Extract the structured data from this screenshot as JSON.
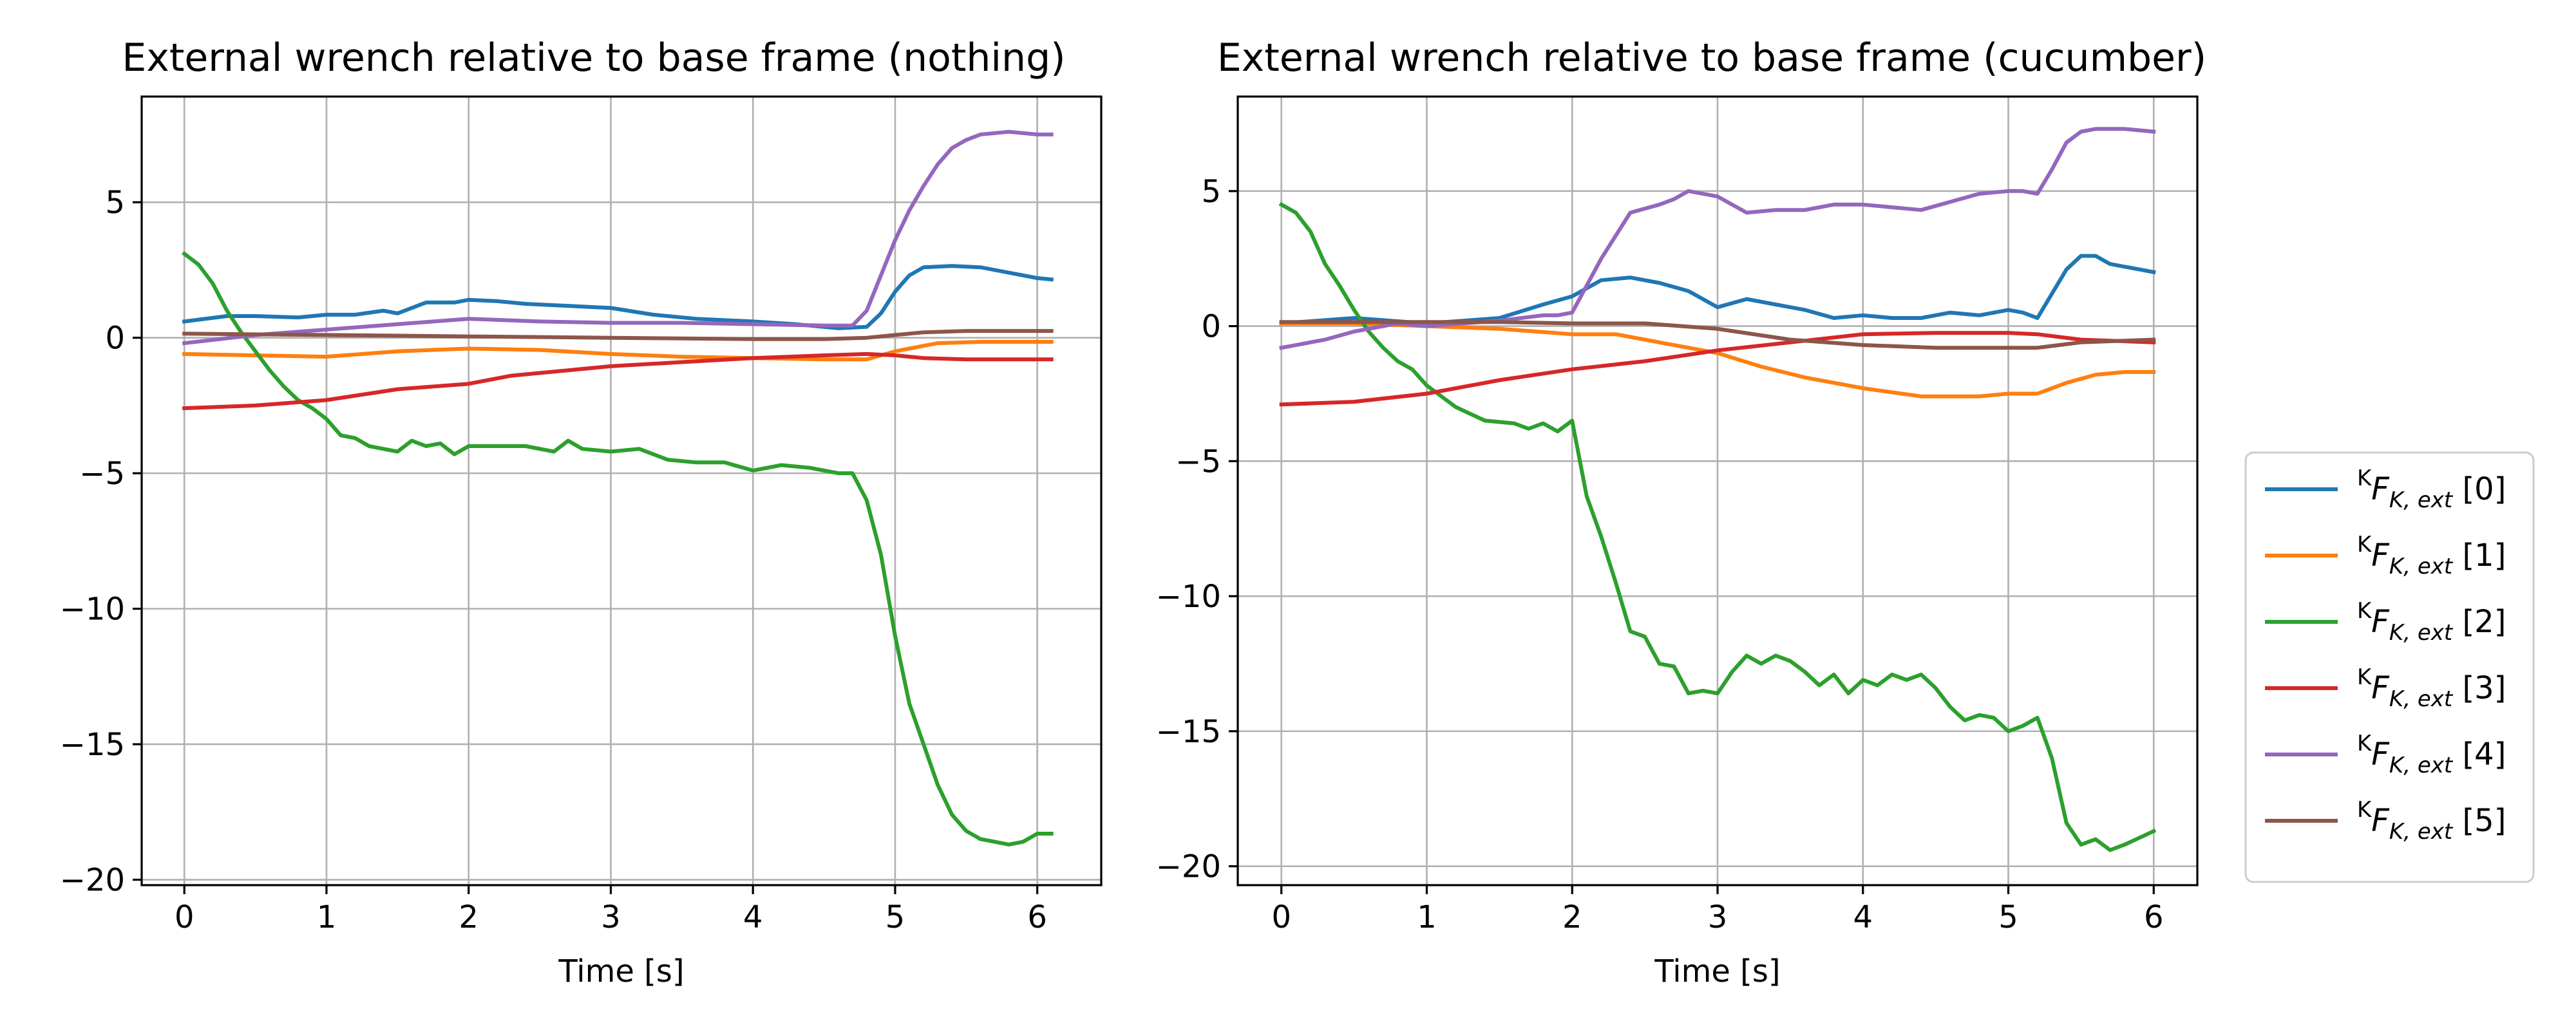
{
  "chart_data": [
    {
      "type": "line",
      "title": "External wrench relative to base frame (nothing)",
      "xlabel": "Time [s]",
      "ylabel": "",
      "xlim": [
        -0.3,
        6.45
      ],
      "ylim": [
        -20.2,
        8.9
      ],
      "xticks": [
        0,
        1,
        2,
        3,
        4,
        5,
        6
      ],
      "yticks": [
        5,
        0,
        -5,
        -10,
        -15,
        -20
      ],
      "grid": true,
      "series": [
        {
          "name": "^K F_{K,ext} [0]",
          "color": "#1f77b4",
          "x": [
            0,
            0.3,
            0.5,
            0.8,
            1.0,
            1.2,
            1.4,
            1.5,
            1.7,
            1.9,
            2.0,
            2.2,
            2.4,
            2.6,
            2.8,
            3.0,
            3.3,
            3.6,
            4.0,
            4.3,
            4.6,
            4.8,
            4.9,
            5.0,
            5.1,
            5.2,
            5.4,
            5.6,
            5.8,
            6.0,
            6.1
          ],
          "values": [
            0.6,
            0.8,
            0.8,
            0.75,
            0.85,
            0.85,
            1.0,
            0.9,
            1.3,
            1.3,
            1.4,
            1.35,
            1.25,
            1.2,
            1.15,
            1.1,
            0.85,
            0.7,
            0.6,
            0.5,
            0.35,
            0.4,
            0.9,
            1.7,
            2.3,
            2.6,
            2.65,
            2.6,
            2.4,
            2.2,
            2.15
          ]
        },
        {
          "name": "^K F_{K,ext} [1]",
          "color": "#ff7f0e",
          "x": [
            0,
            0.5,
            1.0,
            1.5,
            2.0,
            2.5,
            3.0,
            3.5,
            4.0,
            4.5,
            4.8,
            5.0,
            5.3,
            5.6,
            6.0,
            6.1
          ],
          "values": [
            -0.6,
            -0.65,
            -0.7,
            -0.5,
            -0.4,
            -0.45,
            -0.6,
            -0.7,
            -0.75,
            -0.8,
            -0.8,
            -0.5,
            -0.2,
            -0.15,
            -0.15,
            -0.15
          ]
        },
        {
          "name": "^K F_{K,ext} [2]",
          "color": "#2ca02c",
          "x": [
            0,
            0.1,
            0.2,
            0.3,
            0.4,
            0.5,
            0.6,
            0.7,
            0.8,
            0.9,
            1.0,
            1.1,
            1.2,
            1.3,
            1.4,
            1.5,
            1.6,
            1.7,
            1.8,
            1.9,
            2.0,
            2.2,
            2.4,
            2.6,
            2.7,
            2.8,
            3.0,
            3.2,
            3.4,
            3.6,
            3.8,
            4.0,
            4.2,
            4.4,
            4.6,
            4.7,
            4.8,
            4.9,
            5.0,
            5.1,
            5.2,
            5.3,
            5.4,
            5.5,
            5.6,
            5.7,
            5.8,
            5.9,
            6.0,
            6.1
          ],
          "values": [
            3.1,
            2.7,
            2.0,
            1.0,
            0.2,
            -0.5,
            -1.2,
            -1.8,
            -2.3,
            -2.6,
            -3.0,
            -3.6,
            -3.7,
            -4.0,
            -4.1,
            -4.2,
            -3.8,
            -4.0,
            -3.9,
            -4.3,
            -4.0,
            -4.0,
            -4.0,
            -4.2,
            -3.8,
            -4.1,
            -4.2,
            -4.1,
            -4.5,
            -4.6,
            -4.6,
            -4.9,
            -4.7,
            -4.8,
            -5.0,
            -5.0,
            -6.0,
            -8.0,
            -11.0,
            -13.5,
            -15.0,
            -16.5,
            -17.6,
            -18.2,
            -18.5,
            -18.6,
            -18.7,
            -18.6,
            -18.3,
            -18.3
          ]
        },
        {
          "name": "^K F_{K,ext} [3]",
          "color": "#d62728",
          "x": [
            0,
            0.5,
            1.0,
            1.5,
            2.0,
            2.3,
            2.5,
            3.0,
            3.5,
            4.0,
            4.5,
            4.8,
            5.0,
            5.2,
            5.5,
            6.0,
            6.1
          ],
          "values": [
            -2.6,
            -2.5,
            -2.3,
            -1.9,
            -1.7,
            -1.4,
            -1.3,
            -1.05,
            -0.9,
            -0.75,
            -0.65,
            -0.6,
            -0.65,
            -0.75,
            -0.8,
            -0.8,
            -0.8
          ]
        },
        {
          "name": "^K F_{K,ext} [4]",
          "color": "#9467bd",
          "x": [
            0,
            0.5,
            1.0,
            1.5,
            2.0,
            2.5,
            3.0,
            3.5,
            4.0,
            4.5,
            4.7,
            4.8,
            4.9,
            5.0,
            5.1,
            5.2,
            5.3,
            5.4,
            5.5,
            5.6,
            5.8,
            6.0,
            6.1
          ],
          "values": [
            -0.2,
            0.1,
            0.3,
            0.5,
            0.7,
            0.6,
            0.55,
            0.55,
            0.5,
            0.45,
            0.45,
            1.0,
            2.3,
            3.6,
            4.7,
            5.6,
            6.4,
            7.0,
            7.3,
            7.5,
            7.6,
            7.5,
            7.5
          ]
        },
        {
          "name": "^K F_{K,ext} [5]",
          "color": "#8c564b",
          "x": [
            0,
            1.0,
            2.0,
            3.0,
            4.0,
            4.5,
            4.8,
            5.0,
            5.2,
            5.5,
            6.0,
            6.1
          ],
          "values": [
            0.15,
            0.1,
            0.05,
            0.0,
            -0.05,
            -0.05,
            0.0,
            0.1,
            0.2,
            0.25,
            0.25,
            0.25
          ]
        }
      ]
    },
    {
      "type": "line",
      "title": "External wrench relative to base frame (cucumber)",
      "xlabel": "Time [s]",
      "ylabel": "",
      "xlim": [
        -0.3,
        6.3
      ],
      "ylim": [
        -20.7,
        8.5
      ],
      "xticks": [
        0,
        1,
        2,
        3,
        4,
        5,
        6
      ],
      "yticks": [
        5,
        0,
        -5,
        -10,
        -15,
        -20
      ],
      "grid": true,
      "series": [
        {
          "name": "^K F_{K,ext} [0]",
          "color": "#1f77b4",
          "x": [
            0,
            0.5,
            1.0,
            1.5,
            1.8,
            2.0,
            2.2,
            2.4,
            2.6,
            2.8,
            3.0,
            3.2,
            3.4,
            3.6,
            3.8,
            4.0,
            4.2,
            4.4,
            4.6,
            4.8,
            5.0,
            5.1,
            5.2,
            5.3,
            5.4,
            5.5,
            5.6,
            5.7,
            5.8,
            6.0
          ],
          "values": [
            0.1,
            0.3,
            0.1,
            0.3,
            0.8,
            1.1,
            1.7,
            1.8,
            1.6,
            1.3,
            0.7,
            1.0,
            0.8,
            0.6,
            0.3,
            0.4,
            0.3,
            0.3,
            0.5,
            0.4,
            0.6,
            0.5,
            0.3,
            1.2,
            2.1,
            2.6,
            2.6,
            2.3,
            2.2,
            2.0
          ]
        },
        {
          "name": "^K F_{K,ext} [1]",
          "color": "#ff7f0e",
          "x": [
            0,
            0.5,
            1.0,
            1.5,
            2.0,
            2.3,
            2.6,
            2.8,
            3.0,
            3.3,
            3.6,
            4.0,
            4.4,
            4.8,
            5.0,
            5.2,
            5.4,
            5.6,
            5.8,
            6.0
          ],
          "values": [
            0.1,
            0.1,
            0.0,
            -0.1,
            -0.3,
            -0.3,
            -0.6,
            -0.8,
            -1.0,
            -1.5,
            -1.9,
            -2.3,
            -2.6,
            -2.6,
            -2.5,
            -2.5,
            -2.1,
            -1.8,
            -1.7,
            -1.7
          ]
        },
        {
          "name": "^K F_{K,ext} [2]",
          "color": "#2ca02c",
          "x": [
            0,
            0.1,
            0.2,
            0.3,
            0.4,
            0.5,
            0.6,
            0.7,
            0.8,
            0.9,
            1.0,
            1.2,
            1.4,
            1.6,
            1.7,
            1.8,
            1.9,
            2.0,
            2.1,
            2.2,
            2.3,
            2.4,
            2.5,
            2.6,
            2.7,
            2.8,
            2.9,
            3.0,
            3.1,
            3.2,
            3.3,
            3.4,
            3.5,
            3.6,
            3.7,
            3.8,
            3.9,
            4.0,
            4.1,
            4.2,
            4.3,
            4.4,
            4.5,
            4.6,
            4.7,
            4.8,
            4.9,
            5.0,
            5.1,
            5.2,
            5.3,
            5.4,
            5.5,
            5.6,
            5.7,
            5.8,
            6.0
          ],
          "values": [
            4.5,
            4.2,
            3.5,
            2.3,
            1.5,
            0.6,
            -0.2,
            -0.8,
            -1.3,
            -1.6,
            -2.2,
            -3.0,
            -3.5,
            -3.6,
            -3.8,
            -3.6,
            -3.9,
            -3.5,
            -6.3,
            -7.8,
            -9.5,
            -11.3,
            -11.5,
            -12.5,
            -12.6,
            -13.6,
            -13.5,
            -13.6,
            -12.8,
            -12.2,
            -12.5,
            -12.2,
            -12.4,
            -12.8,
            -13.3,
            -12.9,
            -13.6,
            -13.1,
            -13.3,
            -12.9,
            -13.1,
            -12.9,
            -13.4,
            -14.1,
            -14.6,
            -14.4,
            -14.5,
            -15.0,
            -14.8,
            -14.5,
            -16.0,
            -18.4,
            -19.2,
            -19.0,
            -19.4,
            -19.2,
            -18.7
          ]
        },
        {
          "name": "^K F_{K,ext} [3]",
          "color": "#d62728",
          "x": [
            0,
            0.5,
            1.0,
            1.5,
            2.0,
            2.5,
            3.0,
            3.5,
            4.0,
            4.5,
            5.0,
            5.2,
            5.5,
            6.0
          ],
          "values": [
            -2.9,
            -2.8,
            -2.5,
            -2.0,
            -1.6,
            -1.3,
            -0.9,
            -0.6,
            -0.3,
            -0.25,
            -0.25,
            -0.3,
            -0.5,
            -0.6
          ]
        },
        {
          "name": "^K F_{K,ext} [4]",
          "color": "#9467bd",
          "x": [
            0,
            0.3,
            0.5,
            0.8,
            1.0,
            1.5,
            1.8,
            1.9,
            2.0,
            2.2,
            2.4,
            2.6,
            2.7,
            2.8,
            3.0,
            3.2,
            3.4,
            3.6,
            3.8,
            4.0,
            4.2,
            4.4,
            4.6,
            4.8,
            5.0,
            5.1,
            5.2,
            5.3,
            5.4,
            5.5,
            5.6,
            5.8,
            6.0
          ],
          "values": [
            -0.8,
            -0.5,
            -0.2,
            0.1,
            0.0,
            0.2,
            0.4,
            0.4,
            0.5,
            2.5,
            4.2,
            4.5,
            4.7,
            5.0,
            4.8,
            4.2,
            4.3,
            4.3,
            4.5,
            4.5,
            4.4,
            4.3,
            4.6,
            4.9,
            5.0,
            5.0,
            4.9,
            5.8,
            6.8,
            7.2,
            7.3,
            7.3,
            7.2
          ]
        },
        {
          "name": "^K F_{K,ext} [5]",
          "color": "#8c564b",
          "x": [
            0,
            0.5,
            1.0,
            1.5,
            2.0,
            2.5,
            3.0,
            3.5,
            4.0,
            4.5,
            5.0,
            5.2,
            5.5,
            6.0
          ],
          "values": [
            0.15,
            0.15,
            0.15,
            0.15,
            0.1,
            0.1,
            -0.1,
            -0.5,
            -0.7,
            -0.8,
            -0.8,
            -0.8,
            -0.6,
            -0.5
          ]
        }
      ]
    }
  ],
  "legend": {
    "placement": "right",
    "items": [
      {
        "prefix": "K",
        "main": "F",
        "sub": "K, ext",
        "suffix": " [0]",
        "color": "#1f77b4"
      },
      {
        "prefix": "K",
        "main": "F",
        "sub": "K, ext",
        "suffix": " [1]",
        "color": "#ff7f0e"
      },
      {
        "prefix": "K",
        "main": "F",
        "sub": "K, ext",
        "suffix": " [2]",
        "color": "#2ca02c"
      },
      {
        "prefix": "K",
        "main": "F",
        "sub": "K, ext",
        "suffix": " [3]",
        "color": "#d62728"
      },
      {
        "prefix": "K",
        "main": "F",
        "sub": "K, ext",
        "suffix": " [4]",
        "color": "#9467bd"
      },
      {
        "prefix": "K",
        "main": "F",
        "sub": "K, ext",
        "suffix": " [5]",
        "color": "#8c564b"
      }
    ]
  }
}
